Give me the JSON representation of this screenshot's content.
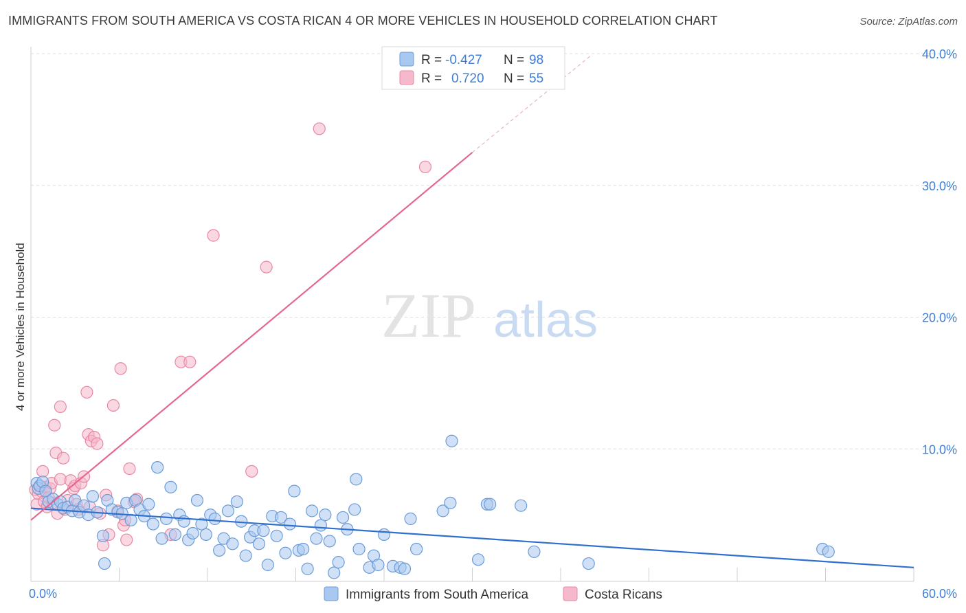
{
  "header": {
    "title": "IMMIGRANTS FROM SOUTH AMERICA VS COSTA RICAN 4 OR MORE VEHICLES IN HOUSEHOLD CORRELATION CHART",
    "source": "Source: ZipAtlas.com"
  },
  "watermark": {
    "zip": "ZIP",
    "atlas": "atlas"
  },
  "legend_top": [
    {
      "r_label": "R =",
      "r_value": "-0.427",
      "n_label": "N =",
      "n_value": "98"
    },
    {
      "r_label": "R =",
      "r_value": "0.720",
      "n_label": "N =",
      "n_value": "55"
    }
  ],
  "colors": {
    "blue_fill": "#a9c8f0",
    "blue_stroke": "#6a9bd8",
    "blue_line": "#2f6fce",
    "pink_fill": "#f6b8cb",
    "pink_stroke": "#e888a6",
    "pink_line": "#e46792",
    "axis_text": "#3f7ed4",
    "grid": "#dcdcdc"
  },
  "chart_data": {
    "type": "scatter",
    "title": "IMMIGRANTS FROM SOUTH AMERICA VS COSTA RICAN 4 OR MORE VEHICLES IN HOUSEHOLD CORRELATION CHART",
    "xlabel": "",
    "ylabel": "4 or more Vehicles in Household",
    "xlim": [
      0,
      60
    ],
    "ylim": [
      0,
      40
    ],
    "x_tick_labels": [
      "0.0%",
      "60.0%"
    ],
    "y_tick_labels": [
      "10.0%",
      "20.0%",
      "30.0%",
      "40.0%"
    ],
    "y_ticks": [
      10,
      20,
      30,
      40
    ],
    "grid": true,
    "legend_position": "bottom-center",
    "series": [
      {
        "name": "Immigrants from South America",
        "color": "#a9c8f0",
        "r": -0.427,
        "n": 98,
        "trend": {
          "x": [
            0,
            60
          ],
          "y": [
            5.5,
            1.0
          ]
        },
        "points": [
          [
            0.4,
            7.4
          ],
          [
            0.5,
            7.0
          ],
          [
            0.6,
            7.2
          ],
          [
            0.8,
            7.5
          ],
          [
            1.0,
            6.8
          ],
          [
            1.2,
            6.0
          ],
          [
            1.5,
            6.2
          ],
          [
            1.8,
            5.8
          ],
          [
            2.0,
            6.0
          ],
          [
            2.2,
            5.5
          ],
          [
            2.5,
            5.6
          ],
          [
            2.8,
            5.3
          ],
          [
            3.0,
            6.1
          ],
          [
            3.3,
            5.2
          ],
          [
            3.6,
            5.7
          ],
          [
            3.9,
            5.0
          ],
          [
            4.2,
            6.4
          ],
          [
            4.5,
            5.2
          ],
          [
            4.9,
            3.4
          ],
          [
            5.2,
            6.1
          ],
          [
            5.5,
            5.4
          ],
          [
            5.9,
            5.2
          ],
          [
            6.2,
            5.1
          ],
          [
            6.5,
            5.9
          ],
          [
            6.8,
            4.6
          ],
          [
            7.1,
            6.1
          ],
          [
            7.4,
            5.4
          ],
          [
            7.7,
            4.9
          ],
          [
            8.0,
            5.8
          ],
          [
            8.3,
            4.3
          ],
          [
            8.6,
            8.6
          ],
          [
            8.9,
            3.2
          ],
          [
            9.2,
            4.7
          ],
          [
            9.5,
            7.1
          ],
          [
            9.8,
            3.5
          ],
          [
            10.1,
            5.0
          ],
          [
            10.4,
            4.5
          ],
          [
            10.7,
            3.1
          ],
          [
            11.0,
            3.6
          ],
          [
            11.3,
            6.1
          ],
          [
            11.6,
            4.3
          ],
          [
            11.9,
            3.5
          ],
          [
            12.2,
            5.0
          ],
          [
            12.5,
            4.7
          ],
          [
            12.8,
            2.3
          ],
          [
            13.1,
            3.2
          ],
          [
            13.4,
            5.3
          ],
          [
            13.7,
            2.8
          ],
          [
            14.0,
            6.0
          ],
          [
            14.3,
            4.5
          ],
          [
            14.6,
            1.9
          ],
          [
            14.9,
            3.3
          ],
          [
            15.2,
            3.8
          ],
          [
            15.5,
            2.8
          ],
          [
            15.8,
            3.8
          ],
          [
            16.1,
            1.2
          ],
          [
            16.4,
            4.9
          ],
          [
            16.7,
            3.4
          ],
          [
            17.0,
            4.8
          ],
          [
            17.3,
            2.1
          ],
          [
            17.6,
            4.3
          ],
          [
            17.9,
            6.8
          ],
          [
            18.2,
            2.3
          ],
          [
            18.5,
            2.4
          ],
          [
            18.8,
            0.9
          ],
          [
            19.1,
            5.3
          ],
          [
            19.4,
            3.2
          ],
          [
            19.7,
            4.2
          ],
          [
            20.0,
            5.0
          ],
          [
            20.3,
            3.0
          ],
          [
            20.6,
            0.6
          ],
          [
            20.9,
            1.4
          ],
          [
            21.2,
            4.8
          ],
          [
            21.5,
            3.9
          ],
          [
            22.0,
            5.4
          ],
          [
            22.3,
            2.4
          ],
          [
            22.1,
            7.7
          ],
          [
            23.0,
            1.0
          ],
          [
            23.3,
            1.9
          ],
          [
            23.6,
            1.2
          ],
          [
            24.0,
            3.5
          ],
          [
            24.6,
            1.1
          ],
          [
            25.1,
            1.0
          ],
          [
            25.4,
            0.9
          ],
          [
            25.8,
            4.7
          ],
          [
            26.2,
            2.4
          ],
          [
            28.0,
            5.3
          ],
          [
            28.5,
            5.9
          ],
          [
            28.6,
            10.6
          ],
          [
            30.4,
            1.6
          ],
          [
            31.0,
            5.8
          ],
          [
            31.2,
            5.8
          ],
          [
            33.3,
            5.7
          ],
          [
            34.2,
            2.2
          ],
          [
            37.9,
            1.3
          ],
          [
            53.8,
            2.4
          ],
          [
            54.2,
            2.2
          ],
          [
            5.0,
            1.3
          ]
        ]
      },
      {
        "name": "Costa Ricans",
        "color": "#f6b8cb",
        "r": 0.72,
        "n": 55,
        "trend": {
          "x": [
            0,
            30
          ],
          "y": [
            4.6,
            32.5
          ]
        },
        "trend_dashed": {
          "x": [
            30,
            38
          ],
          "y": [
            32.5,
            39.8
          ]
        },
        "points": [
          [
            0.3,
            6.9
          ],
          [
            0.4,
            5.8
          ],
          [
            0.5,
            6.6
          ],
          [
            0.6,
            7.2
          ],
          [
            0.7,
            6.8
          ],
          [
            0.8,
            8.3
          ],
          [
            0.9,
            6.0
          ],
          [
            1.0,
            7.1
          ],
          [
            1.1,
            5.6
          ],
          [
            1.3,
            7.0
          ],
          [
            1.4,
            7.4
          ],
          [
            1.5,
            5.9
          ],
          [
            1.6,
            11.8
          ],
          [
            1.7,
            9.7
          ],
          [
            1.8,
            5.1
          ],
          [
            2.0,
            13.2
          ],
          [
            2.2,
            9.3
          ],
          [
            2.0,
            7.7
          ],
          [
            2.5,
            6.1
          ],
          [
            2.7,
            7.6
          ],
          [
            2.9,
            7.0
          ],
          [
            3.0,
            7.2
          ],
          [
            3.1,
            5.8
          ],
          [
            3.2,
            5.4
          ],
          [
            3.4,
            7.4
          ],
          [
            3.6,
            7.9
          ],
          [
            3.8,
            14.3
          ],
          [
            3.9,
            11.1
          ],
          [
            4.1,
            10.6
          ],
          [
            4.3,
            10.9
          ],
          [
            4.5,
            10.4
          ],
          [
            4.7,
            5.1
          ],
          [
            4.9,
            2.7
          ],
          [
            5.1,
            6.5
          ],
          [
            5.3,
            3.5
          ],
          [
            5.6,
            13.3
          ],
          [
            5.9,
            5.3
          ],
          [
            6.1,
            16.1
          ],
          [
            6.3,
            4.2
          ],
          [
            6.5,
            3.1
          ],
          [
            6.7,
            8.5
          ],
          [
            7.0,
            6.0
          ],
          [
            7.2,
            6.2
          ],
          [
            10.2,
            16.6
          ],
          [
            10.8,
            16.6
          ],
          [
            12.4,
            26.2
          ],
          [
            15.0,
            8.3
          ],
          [
            16.0,
            23.8
          ],
          [
            19.6,
            34.3
          ],
          [
            26.8,
            31.4
          ],
          [
            9.5,
            3.5
          ],
          [
            6.4,
            4.6
          ],
          [
            4.0,
            5.6
          ],
          [
            2.3,
            5.4
          ],
          [
            1.2,
            6.3
          ]
        ]
      }
    ]
  }
}
